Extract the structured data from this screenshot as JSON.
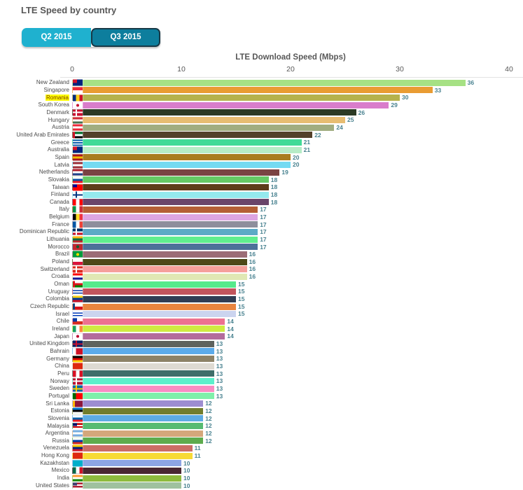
{
  "page": {
    "title": "LTE Speed by country"
  },
  "tabs": [
    {
      "label": "Q2 2015",
      "active": false
    },
    {
      "label": "Q3 2015",
      "active": true
    }
  ],
  "styles": {
    "tab_inactive_bg": "#1fb1cf",
    "tab_active_bg": "#0d7e9d",
    "tab_active_border": "#173947",
    "value_label_color": "#47818f",
    "country_label_color": "#4a4a4a",
    "highlight_bg": "#ffff00",
    "highlight_text": "#7c3a00",
    "axis_text_color": "#575757"
  },
  "chart_data": {
    "type": "bar",
    "orientation": "horizontal",
    "title": "LTE Speed by country",
    "xlabel": "LTE Download Speed (Mbps)",
    "ylabel": "",
    "xlim": [
      0,
      40
    ],
    "x_ticks": [
      0,
      10,
      20,
      30,
      40
    ],
    "grid": false,
    "legend": "none",
    "highlighted_category": "Romania",
    "categories": [
      "New Zealand",
      "Singapore",
      "Romania",
      "South Korea",
      "Denmark",
      "Hungary",
      "Austria",
      "United Arab Emirates",
      "Greece",
      "Australia",
      "Spain",
      "Latvia",
      "Netherlands",
      "Slovakia",
      "Taiwan",
      "Finland",
      "Canada",
      "Italy",
      "Belgium",
      "France",
      "Dominican Republic",
      "Lithuania",
      "Morocco",
      "Brazil",
      "Poland",
      "Switzerland",
      "Croatia",
      "Oman",
      "Uruguay",
      "Colombia",
      "Czech Republic",
      "Israel",
      "Chile",
      "Ireland",
      "Japan",
      "United Kingdom",
      "Bahrain",
      "Germany",
      "China",
      "Peru",
      "Norway",
      "Sweden",
      "Portugal",
      "Sri Lanka",
      "Estonia",
      "Slovenia",
      "Malaysia",
      "Argentina",
      "Russia",
      "Venezuela",
      "Hong Kong",
      "Kazakhstan",
      "Mexico",
      "India",
      "United States"
    ],
    "values": [
      36,
      33,
      30,
      29,
      26,
      25,
      24,
      22,
      21,
      21,
      20,
      20,
      19,
      18,
      18,
      18,
      18,
      17,
      17,
      17,
      17,
      17,
      17,
      16,
      16,
      16,
      16,
      15,
      15,
      15,
      15,
      15,
      14,
      14,
      14,
      13,
      13,
      13,
      13,
      13,
      13,
      13,
      13,
      12,
      12,
      12,
      12,
      12,
      12,
      11,
      11,
      10,
      10,
      10,
      10
    ],
    "bar_colors": [
      "#a6e184",
      "#e99c32",
      "#b5b24d",
      "#d97dcb",
      "#2b3a24",
      "#e7bd72",
      "#a1ad80",
      "#53402a",
      "#41da97",
      "#b6ecc6",
      "#a97c1f",
      "#74daf2",
      "#7a4343",
      "#66c965",
      "#5e3d1a",
      "#94e9ee",
      "#6a456a",
      "#b45f36",
      "#dda5e2",
      "#8e8e9c",
      "#5caac6",
      "#60ee8e",
      "#4d7099",
      "#9c6d76",
      "#4d4819",
      "#f5a09c",
      "#e0e8b4",
      "#55ea8b",
      "#c2555d",
      "#303d54",
      "#e9853f",
      "#cbd4ef",
      "#ed7290",
      "#cfec41",
      "#b36c9c",
      "#5e635e",
      "#5cabea",
      "#8d8267",
      "#dedad2",
      "#3e6e6a",
      "#5cf0cb",
      "#f98cc3",
      "#7ff0aa",
      "#9d8dd0",
      "#717d2d",
      "#5dabe3",
      "#56bb73",
      "#d4a77b",
      "#5dab4d",
      "#cb6d65",
      "#f7da35",
      "#8da5e3",
      "#492731",
      "#8dbb3d",
      "#9fc19f"
    ],
    "flags": [
      {
        "dir": "h",
        "colors": [
          "#00247d"
        ],
        "canton": "#cf142b"
      },
      {
        "dir": "h",
        "colors": [
          "#ed2939",
          "#ffffff"
        ]
      },
      {
        "dir": "v",
        "colors": [
          "#002b7f",
          "#fcd116",
          "#ce1126"
        ]
      },
      {
        "dir": "h",
        "colors": [
          "#ffffff"
        ],
        "dot": "#c60c30"
      },
      {
        "dir": "h",
        "colors": [
          "#c8102e"
        ],
        "cross": "#ffffff"
      },
      {
        "dir": "h",
        "colors": [
          "#ce2939",
          "#ffffff",
          "#477050"
        ]
      },
      {
        "dir": "h",
        "colors": [
          "#ed2939",
          "#ffffff",
          "#ed2939"
        ]
      },
      {
        "dir": "h",
        "colors": [
          "#00732f",
          "#ffffff",
          "#000000"
        ],
        "hoist": "#ce1126"
      },
      {
        "dir": "h",
        "colors": [
          "#0d5eaf",
          "#ffffff",
          "#0d5eaf",
          "#ffffff",
          "#0d5eaf"
        ]
      },
      {
        "dir": "h",
        "colors": [
          "#00247d"
        ],
        "canton": "#cf142b"
      },
      {
        "dir": "h",
        "colors": [
          "#aa151b",
          "#f1bf00",
          "#aa151b"
        ]
      },
      {
        "dir": "h",
        "colors": [
          "#9e3039",
          "#ffffff",
          "#9e3039"
        ]
      },
      {
        "dir": "h",
        "colors": [
          "#ae1c28",
          "#ffffff",
          "#21468b"
        ]
      },
      {
        "dir": "h",
        "colors": [
          "#ffffff",
          "#0b4ea2",
          "#ee1c25"
        ]
      },
      {
        "dir": "h",
        "colors": [
          "#fe0000"
        ],
        "canton": "#000095"
      },
      {
        "dir": "h",
        "colors": [
          "#ffffff"
        ],
        "cross": "#003580"
      },
      {
        "dir": "v",
        "colors": [
          "#ff0000",
          "#ffffff",
          "#ff0000"
        ]
      },
      {
        "dir": "v",
        "colors": [
          "#009246",
          "#ffffff",
          "#ce2b37"
        ]
      },
      {
        "dir": "v",
        "colors": [
          "#000000",
          "#fdda24",
          "#ef3340"
        ]
      },
      {
        "dir": "v",
        "colors": [
          "#0055a4",
          "#ffffff",
          "#ef4135"
        ]
      },
      {
        "dir": "h",
        "colors": [
          "#002d62",
          "#ce1126"
        ],
        "cross": "#ffffff"
      },
      {
        "dir": "h",
        "colors": [
          "#fdb913",
          "#006a44",
          "#c1272d"
        ]
      },
      {
        "dir": "h",
        "colors": [
          "#c1272d"
        ],
        "dot": "#006233"
      },
      {
        "dir": "h",
        "colors": [
          "#009c3b"
        ],
        "dot": "#ffdf00"
      },
      {
        "dir": "h",
        "colors": [
          "#ffffff",
          "#dc143c"
        ]
      },
      {
        "dir": "h",
        "colors": [
          "#da291c"
        ],
        "cross": "#ffffff"
      },
      {
        "dir": "h",
        "colors": [
          "#ff0000",
          "#ffffff",
          "#171796"
        ]
      },
      {
        "dir": "h",
        "colors": [
          "#ffffff",
          "#db161b",
          "#008000"
        ],
        "hoist": "#db161b"
      },
      {
        "dir": "h",
        "colors": [
          "#ffffff",
          "#0038a8",
          "#ffffff",
          "#0038a8",
          "#ffffff"
        ]
      },
      {
        "dir": "h",
        "colors": [
          "#fcd116",
          "#003893",
          "#ce1126"
        ]
      },
      {
        "dir": "h",
        "colors": [
          "#ffffff",
          "#d7141a"
        ],
        "hoist": "#11457e"
      },
      {
        "dir": "h",
        "colors": [
          "#ffffff",
          "#0038b8",
          "#ffffff",
          "#0038b8",
          "#ffffff"
        ]
      },
      {
        "dir": "h",
        "colors": [
          "#ffffff",
          "#d52b1e"
        ],
        "canton": "#0039a6"
      },
      {
        "dir": "v",
        "colors": [
          "#169b62",
          "#ffffff",
          "#ff883e"
        ]
      },
      {
        "dir": "h",
        "colors": [
          "#ffffff"
        ],
        "dot": "#bc002d"
      },
      {
        "dir": "h",
        "colors": [
          "#012169"
        ],
        "cross": "#c8102e"
      },
      {
        "dir": "v",
        "colors": [
          "#ffffff",
          "#ce1126",
          "#ce1126"
        ]
      },
      {
        "dir": "h",
        "colors": [
          "#000000",
          "#dd0000",
          "#ffce00"
        ]
      },
      {
        "dir": "h",
        "colors": [
          "#de2910"
        ]
      },
      {
        "dir": "v",
        "colors": [
          "#d91023",
          "#ffffff",
          "#d91023"
        ]
      },
      {
        "dir": "h",
        "colors": [
          "#ba0c2f"
        ],
        "cross": "#ffffff"
      },
      {
        "dir": "h",
        "colors": [
          "#006aa7"
        ],
        "cross": "#fecc00"
      },
      {
        "dir": "v",
        "colors": [
          "#006600",
          "#ff0000",
          "#ff0000"
        ]
      },
      {
        "dir": "h",
        "colors": [
          "#8d153a"
        ],
        "hoist": "#ffb700"
      },
      {
        "dir": "h",
        "colors": [
          "#0072ce",
          "#000000",
          "#ffffff"
        ]
      },
      {
        "dir": "h",
        "colors": [
          "#ffffff",
          "#005da4",
          "#ed1c24"
        ]
      },
      {
        "dir": "h",
        "colors": [
          "#cc0001",
          "#ffffff",
          "#cc0001",
          "#ffffff"
        ],
        "canton": "#010066"
      },
      {
        "dir": "h",
        "colors": [
          "#74acdf",
          "#ffffff",
          "#74acdf"
        ]
      },
      {
        "dir": "h",
        "colors": [
          "#ffffff",
          "#0039a6",
          "#d52b1e"
        ]
      },
      {
        "dir": "h",
        "colors": [
          "#ffcc00",
          "#00247d",
          "#cf142b"
        ]
      },
      {
        "dir": "h",
        "colors": [
          "#de2910"
        ]
      },
      {
        "dir": "h",
        "colors": [
          "#00afca"
        ]
      },
      {
        "dir": "v",
        "colors": [
          "#006847",
          "#ffffff",
          "#ce1126"
        ]
      },
      {
        "dir": "h",
        "colors": [
          "#ff9933",
          "#ffffff",
          "#138808"
        ]
      },
      {
        "dir": "h",
        "colors": [
          "#b22234",
          "#ffffff",
          "#b22234",
          "#ffffff"
        ],
        "canton": "#3c3b6e"
      }
    ]
  }
}
